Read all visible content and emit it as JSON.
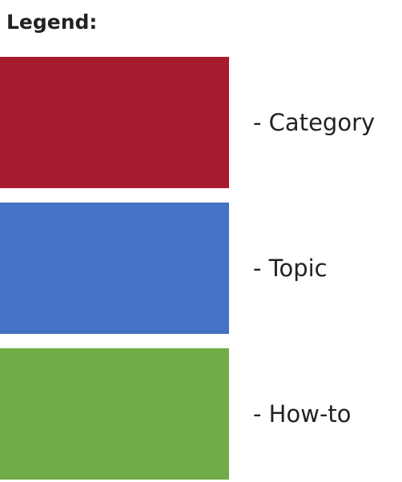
{
  "legend": {
    "title": "Legend:",
    "items": [
      {
        "label": "- Category",
        "color": "#A61B2E"
      },
      {
        "label": "- Topic",
        "color": "#4472C4"
      },
      {
        "label": "- How-to",
        "color": "#70AD47"
      }
    ]
  }
}
